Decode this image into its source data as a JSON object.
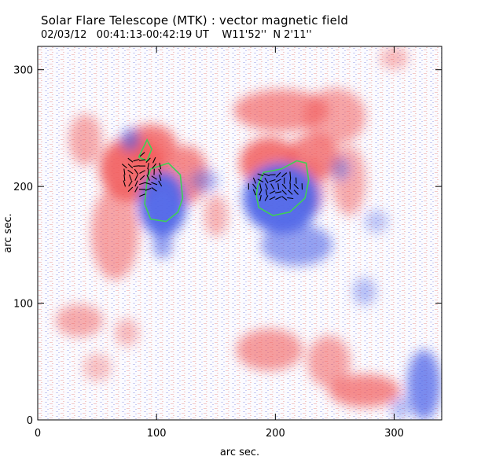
{
  "header": {
    "title": "Solar Flare Telescope (MTK) : vector magnetic field",
    "date": "02/03/12",
    "time_range": "00:41:13-00:42:19 UT",
    "position": "W11'52''  N 2'11''"
  },
  "chart_data": {
    "type": "heatmap",
    "xlabel": "arc sec.",
    "ylabel": "arc sec.",
    "xlim": [
      0,
      340
    ],
    "ylim": [
      0,
      320
    ],
    "x_ticks": [
      0,
      100,
      200,
      300
    ],
    "y_ticks": [
      0,
      100,
      200,
      300
    ],
    "colors": {
      "positive": "#f25d5d",
      "negative": "#5066e8",
      "contour": "#3fcf55",
      "vector": "#000000"
    }
  }
}
